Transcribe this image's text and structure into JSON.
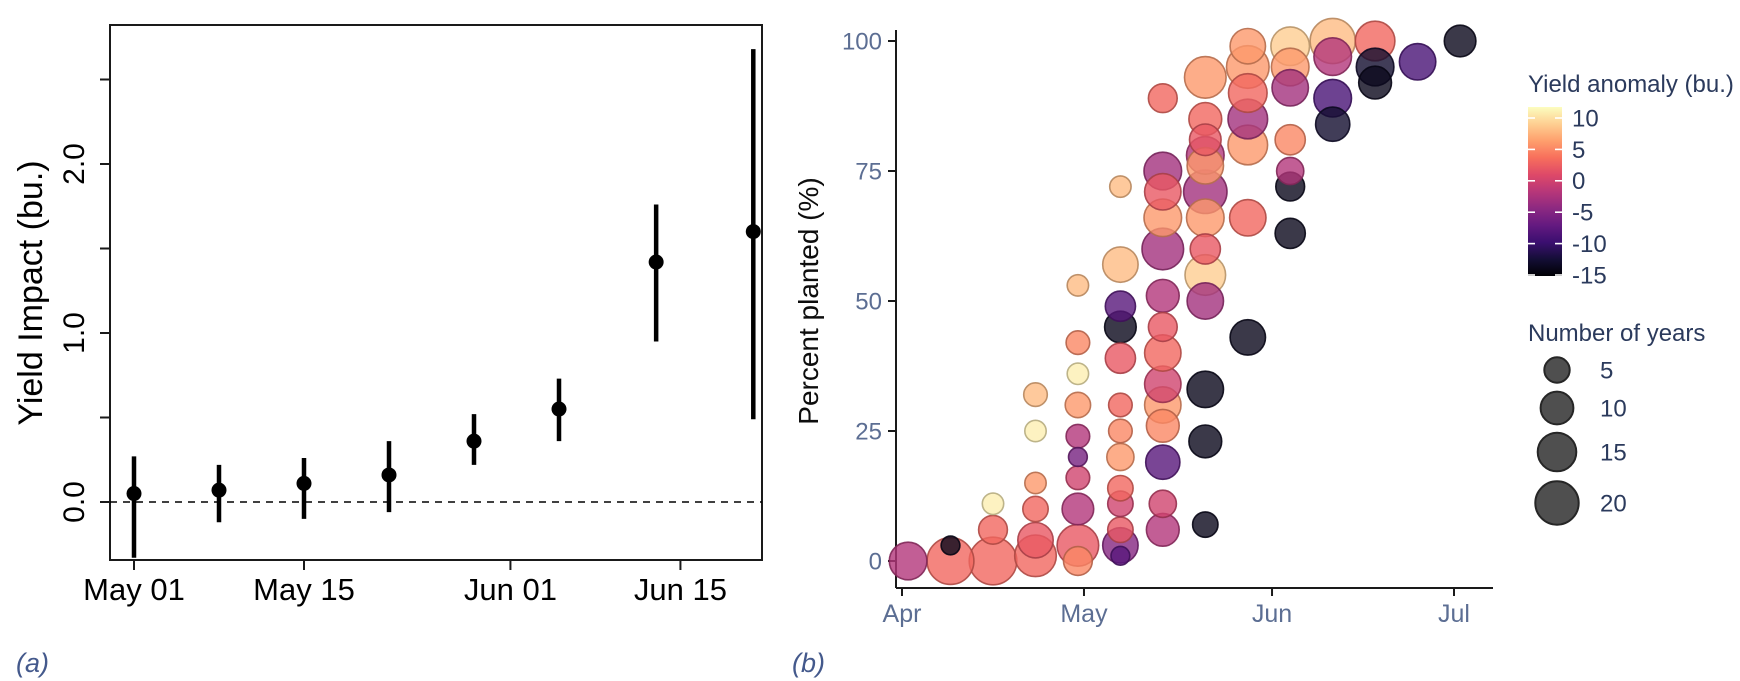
{
  "panel_labels": {
    "a": "(a)",
    "b": "(b)"
  },
  "colors": {
    "axis_text_b": "#5c6e93",
    "legend_text": "#2b3a5c",
    "panel_label": "#44598c",
    "point_black": "#000000",
    "axis_line": "#1a1a1a",
    "legend_circle_fill": "#4f4f4f",
    "legend_circle_stroke": "#262626"
  },
  "legends": {
    "color": {
      "title": "Yield anomaly (bu.)",
      "ticks": [
        10,
        5,
        0,
        -5,
        -10,
        -15
      ],
      "domain_top": 11.8,
      "domain_bottom": -15.3,
      "palette": [
        [
          0.0,
          "#000004"
        ],
        [
          0.1,
          "#140e36"
        ],
        [
          0.2,
          "#3b0f70"
        ],
        [
          0.3,
          "#641a80"
        ],
        [
          0.4,
          "#8c2981"
        ],
        [
          0.5,
          "#b73779"
        ],
        [
          0.6,
          "#de4968"
        ],
        [
          0.7,
          "#f76f5c"
        ],
        [
          0.8,
          "#fe9f6d"
        ],
        [
          0.9,
          "#fecf92"
        ],
        [
          1.0,
          "#fcfdbf"
        ]
      ]
    },
    "size": {
      "title": "Number of years",
      "entries": [
        5,
        10,
        15,
        20
      ]
    }
  },
  "chart_data": [
    {
      "id": "a",
      "type": "pointrange",
      "ylabel": "Yield Impact (bu.)",
      "x_tick_labels": [
        "May 01",
        "May 15",
        "Jun 01",
        "Jun 15"
      ],
      "x_tick_days": [
        30,
        44,
        61,
        75
      ],
      "y_ticks": [
        0,
        0.5,
        1,
        1.5,
        2,
        2.5
      ],
      "y_tick_labels": {
        "0": "0.0",
        "1": "1.0",
        "2": "2.0"
      },
      "ylim": [
        -0.36,
        2.83
      ],
      "zero_line": 0,
      "points": [
        {
          "date": "May 01",
          "day": 30,
          "estimate": 0.05,
          "lower": -0.33,
          "upper": 0.27
        },
        {
          "date": "May 08",
          "day": 37,
          "estimate": 0.07,
          "lower": -0.12,
          "upper": 0.22
        },
        {
          "date": "May 15",
          "day": 44,
          "estimate": 0.11,
          "lower": -0.1,
          "upper": 0.26
        },
        {
          "date": "May 22",
          "day": 51,
          "estimate": 0.16,
          "lower": -0.06,
          "upper": 0.36
        },
        {
          "date": "May 29",
          "day": 58,
          "estimate": 0.36,
          "lower": 0.22,
          "upper": 0.52
        },
        {
          "date": "Jun 05",
          "day": 65,
          "estimate": 0.55,
          "lower": 0.36,
          "upper": 0.73
        },
        {
          "date": "Jun 12",
          "day": 73,
          "estimate": 1.42,
          "lower": 0.95,
          "upper": 1.76
        },
        {
          "date": "Jun 19",
          "day": 81,
          "estimate": 1.6,
          "lower": 0.49,
          "upper": 2.68
        }
      ]
    },
    {
      "id": "b",
      "type": "bubble",
      "ylabel": "Percent planted (%)",
      "x_tick_labels": [
        "Apr",
        "May",
        "Jun",
        "Jul"
      ],
      "x_tick_days": [
        0,
        30,
        61,
        91
      ],
      "y_ticks": [
        0,
        25,
        50,
        75,
        100
      ],
      "ylim": [
        0,
        100
      ],
      "bubbles": [
        {
          "date": "Apr 02",
          "day": 1,
          "percent": 0,
          "years": 14,
          "anomaly": -2
        },
        {
          "date": "Apr 09",
          "day": 8,
          "percent": 0,
          "years": 24,
          "anomaly": 3
        },
        {
          "date": "Apr 09",
          "day": 8,
          "percent": 3,
          "years": 2,
          "anomaly": -14
        },
        {
          "date": "Apr 16",
          "day": 15,
          "percent": 0,
          "years": 25,
          "anomaly": 3
        },
        {
          "date": "Apr 16",
          "day": 15,
          "percent": 6,
          "years": 7,
          "anomaly": 3
        },
        {
          "date": "Apr 16",
          "day": 15,
          "percent": 11,
          "years": 3,
          "anomaly": 11
        },
        {
          "date": "Apr 23",
          "day": 22,
          "percent": 1,
          "years": 18,
          "anomaly": 3
        },
        {
          "date": "Apr 23",
          "day": 22,
          "percent": 4,
          "years": 12,
          "anomaly": 2
        },
        {
          "date": "Apr 23",
          "day": 22,
          "percent": 10,
          "years": 5,
          "anomaly": 3
        },
        {
          "date": "Apr 23",
          "day": 22,
          "percent": 15,
          "years": 3,
          "anomaly": 6
        },
        {
          "date": "Apr 23",
          "day": 22,
          "percent": 25,
          "years": 3,
          "anomaly": 11
        },
        {
          "date": "Apr 23",
          "day": 22,
          "percent": 32,
          "years": 4,
          "anomaly": 8
        },
        {
          "date": "Apr 30",
          "day": 29,
          "percent": 0,
          "years": 7,
          "anomaly": 5
        },
        {
          "date": "Apr 30",
          "day": 29,
          "percent": 3,
          "years": 18,
          "anomaly": 2
        },
        {
          "date": "Apr 30",
          "day": 29,
          "percent": 10,
          "years": 9,
          "anomaly": -2
        },
        {
          "date": "Apr 30",
          "day": 29,
          "percent": 16,
          "years": 4,
          "anomaly": 0
        },
        {
          "date": "Apr 30",
          "day": 29,
          "percent": 20,
          "years": 2,
          "anomaly": -6
        },
        {
          "date": "Apr 30",
          "day": 29,
          "percent": 24,
          "years": 4,
          "anomaly": -2
        },
        {
          "date": "Apr 30",
          "day": 29,
          "percent": 30,
          "years": 5,
          "anomaly": 6
        },
        {
          "date": "Apr 30",
          "day": 29,
          "percent": 36,
          "years": 3,
          "anomaly": 11
        },
        {
          "date": "Apr 30",
          "day": 29,
          "percent": 42,
          "years": 4,
          "anomaly": 5
        },
        {
          "date": "Apr 30",
          "day": 29,
          "percent": 53,
          "years": 3,
          "anomaly": 8
        },
        {
          "date": "May 07",
          "day": 36,
          "percent": 1,
          "years": 2,
          "anomaly": -8
        },
        {
          "date": "May 07",
          "day": 36,
          "percent": 3,
          "years": 12,
          "anomaly": -5
        },
        {
          "date": "May 07",
          "day": 36,
          "percent": 6,
          "years": 5,
          "anomaly": 2
        },
        {
          "date": "May 07",
          "day": 36,
          "percent": 11,
          "years": 5,
          "anomaly": 0
        },
        {
          "date": "May 07",
          "day": 36,
          "percent": 14,
          "years": 5,
          "anomaly": 3
        },
        {
          "date": "May 07",
          "day": 36,
          "percent": 20,
          "years": 6,
          "anomaly": 6
        },
        {
          "date": "May 07",
          "day": 36,
          "percent": 25,
          "years": 4,
          "anomaly": 5
        },
        {
          "date": "May 07",
          "day": 36,
          "percent": 30,
          "years": 4,
          "anomaly": 3
        },
        {
          "date": "May 07",
          "day": 36,
          "percent": 39,
          "years": 8,
          "anomaly": 2
        },
        {
          "date": "May 07",
          "day": 36,
          "percent": 45,
          "years": 9,
          "anomaly": -14
        },
        {
          "date": "May 07",
          "day": 36,
          "percent": 49,
          "years": 8,
          "anomaly": -8
        },
        {
          "date": "May 07",
          "day": 36,
          "percent": 57,
          "years": 12,
          "anomaly": 8
        },
        {
          "date": "May 07",
          "day": 36,
          "percent": 72,
          "years": 3,
          "anomaly": 8
        },
        {
          "date": "May 14",
          "day": 43,
          "percent": 6,
          "years": 10,
          "anomaly": -2
        },
        {
          "date": "May 14",
          "day": 43,
          "percent": 11,
          "years": 6,
          "anomaly": 0
        },
        {
          "date": "May 14",
          "day": 43,
          "percent": 19,
          "years": 11,
          "anomaly": -8
        },
        {
          "date": "May 14",
          "day": 43,
          "percent": 26,
          "years": 10,
          "anomaly": 5
        },
        {
          "date": "May 14",
          "day": 43,
          "percent": 30,
          "years": 13,
          "anomaly": 6
        },
        {
          "date": "May 14",
          "day": 43,
          "percent": 34,
          "years": 13,
          "anomaly": 0
        },
        {
          "date": "May 14",
          "day": 43,
          "percent": 40,
          "years": 13,
          "anomaly": 3
        },
        {
          "date": "May 14",
          "day": 43,
          "percent": 45,
          "years": 7,
          "anomaly": 2
        },
        {
          "date": "May 14",
          "day": 43,
          "percent": 51,
          "years": 10,
          "anomaly": -2
        },
        {
          "date": "May 14",
          "day": 43,
          "percent": 60,
          "years": 18,
          "anomaly": -3
        },
        {
          "date": "May 14",
          "day": 43,
          "percent": 66,
          "years": 14,
          "anomaly": 6
        },
        {
          "date": "May 14",
          "day": 43,
          "percent": 71,
          "years": 13,
          "anomaly": 2
        },
        {
          "date": "May 14",
          "day": 43,
          "percent": 75,
          "years": 14,
          "anomaly": -3
        },
        {
          "date": "May 14",
          "day": 43,
          "percent": 89,
          "years": 7,
          "anomaly": 3
        },
        {
          "date": "May 21",
          "day": 50,
          "percent": 7,
          "years": 5,
          "anomaly": -14
        },
        {
          "date": "May 21",
          "day": 50,
          "percent": 23,
          "years": 10,
          "anomaly": -14
        },
        {
          "date": "May 21",
          "day": 50,
          "percent": 33,
          "years": 13,
          "anomaly": -14
        },
        {
          "date": "May 21",
          "day": 50,
          "percent": 50,
          "years": 13,
          "anomaly": -3
        },
        {
          "date": "May 21",
          "day": 50,
          "percent": 55,
          "years": 17,
          "anomaly": 9
        },
        {
          "date": "May 21",
          "day": 50,
          "percent": 60,
          "years": 8,
          "anomaly": 2
        },
        {
          "date": "May 21",
          "day": 50,
          "percent": 66,
          "years": 14,
          "anomaly": 6
        },
        {
          "date": "May 21",
          "day": 50,
          "percent": 71,
          "years": 20,
          "anomaly": -3
        },
        {
          "date": "May 21",
          "day": 50,
          "percent": 76,
          "years": 13,
          "anomaly": 6
        },
        {
          "date": "May 21",
          "day": 50,
          "percent": 78,
          "years": 14,
          "anomaly": -2
        },
        {
          "date": "May 21",
          "day": 50,
          "percent": 81,
          "years": 9,
          "anomaly": 2
        },
        {
          "date": "May 21",
          "day": 50,
          "percent": 85,
          "years": 10,
          "anomaly": 3
        },
        {
          "date": "May 21",
          "day": 50,
          "percent": 93,
          "years": 18,
          "anomaly": 6
        },
        {
          "date": "May 28",
          "day": 57,
          "percent": 43,
          "years": 12,
          "anomaly": -14
        },
        {
          "date": "May 28",
          "day": 57,
          "percent": 66,
          "years": 13,
          "anomaly": 3
        },
        {
          "date": "May 28",
          "day": 57,
          "percent": 80,
          "years": 16,
          "anomaly": 6
        },
        {
          "date": "May 28",
          "day": 57,
          "percent": 85,
          "years": 16,
          "anomaly": -3
        },
        {
          "date": "May 28",
          "day": 57,
          "percent": 90,
          "years": 15,
          "anomaly": 3
        },
        {
          "date": "May 28",
          "day": 57,
          "percent": 95,
          "years": 19,
          "anomaly": 6
        },
        {
          "date": "May 28",
          "day": 57,
          "percent": 99,
          "years": 12,
          "anomaly": 6
        },
        {
          "date": "Jun 04",
          "day": 64,
          "percent": 63,
          "years": 8,
          "anomaly": -14
        },
        {
          "date": "Jun 04",
          "day": 64,
          "percent": 72,
          "years": 7,
          "anomaly": -14
        },
        {
          "date": "Jun 04",
          "day": 64,
          "percent": 75,
          "years": 6,
          "anomaly": -2
        },
        {
          "date": "Jun 04",
          "day": 64,
          "percent": 81,
          "years": 8,
          "anomaly": 5
        },
        {
          "date": "Jun 04",
          "day": 64,
          "percent": 91,
          "years": 13,
          "anomaly": -3
        },
        {
          "date": "Jun 04",
          "day": 64,
          "percent": 95,
          "years": 14,
          "anomaly": 6
        },
        {
          "date": "Jun 04",
          "day": 64,
          "percent": 99,
          "years": 15,
          "anomaly": 9
        },
        {
          "date": "Jun 11",
          "day": 71,
          "percent": 84,
          "years": 11,
          "anomaly": -13
        },
        {
          "date": "Jun 11",
          "day": 71,
          "percent": 89,
          "years": 14,
          "anomaly": -9
        },
        {
          "date": "Jun 11",
          "day": 71,
          "percent": 97,
          "years": 14,
          "anomaly": -2
        },
        {
          "date": "Jun 11",
          "day": 71,
          "percent": 100,
          "years": 22,
          "anomaly": 8
        },
        {
          "date": "Jun 18",
          "day": 78,
          "percent": 92,
          "years": 10,
          "anomaly": -14
        },
        {
          "date": "Jun 18",
          "day": 78,
          "percent": 95,
          "years": 14,
          "anomaly": -13
        },
        {
          "date": "Jun 18",
          "day": 78,
          "percent": 100,
          "years": 16,
          "anomaly": 3
        },
        {
          "date": "Jun 25",
          "day": 85,
          "percent": 96,
          "years": 13,
          "anomaly": -9
        },
        {
          "date": "Jul 02",
          "day": 92,
          "percent": 100,
          "years": 9,
          "anomaly": -14
        }
      ]
    }
  ]
}
